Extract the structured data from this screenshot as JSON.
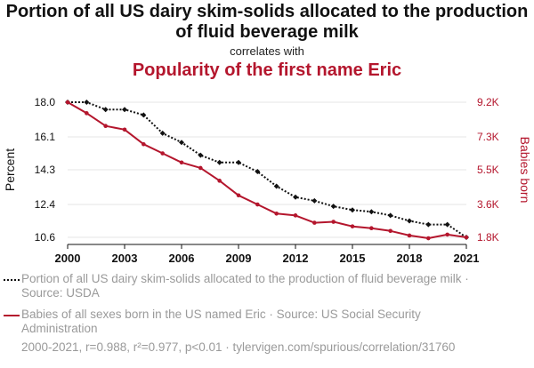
{
  "header": {
    "title": "Portion of all US dairy skim-solids allocated to the production of fluid beverage milk",
    "correlates_with": "correlates with",
    "title2": "Popularity of the first name Eric"
  },
  "chart_data": {
    "type": "line",
    "x": [
      2000,
      2001,
      2002,
      2003,
      2004,
      2005,
      2006,
      2007,
      2008,
      2009,
      2010,
      2011,
      2012,
      2013,
      2014,
      2015,
      2016,
      2017,
      2018,
      2019,
      2020,
      2021
    ],
    "xticks": [
      "2000",
      "2003",
      "2006",
      "2009",
      "2012",
      "2015",
      "2018",
      "2021"
    ],
    "ylabel_left": "Percent",
    "ylabel_right": "Babies born",
    "yticks_left": [
      "18.0",
      "16.1",
      "14.3",
      "12.4",
      "10.6"
    ],
    "yticks_right": [
      "9.2K",
      "7.3K",
      "5.5K",
      "3.6K",
      "1.8K"
    ],
    "ylim_left": [
      10.6,
      18.0
    ],
    "ylim_right": [
      1800,
      9200
    ],
    "grid": true,
    "series": [
      {
        "name": "Portion of all US dairy skim-solids allocated to the production of fluid beverage milk · Source: USDA",
        "axis": "left",
        "color": "#111111",
        "style": "dotted",
        "marker": "diamond",
        "values": [
          18.0,
          18.0,
          17.6,
          17.6,
          17.3,
          16.3,
          15.8,
          15.1,
          14.7,
          14.7,
          14.2,
          13.4,
          12.8,
          12.6,
          12.3,
          12.1,
          12.0,
          11.8,
          11.5,
          11.3,
          11.3,
          10.6
        ]
      },
      {
        "name": "Babies of all sexes born in the US named Eric · Source: US Social Security Administration",
        "axis": "right",
        "color": "#b4162d",
        "style": "solid",
        "marker": "circle",
        "values": [
          9200,
          8600,
          7900,
          7700,
          6900,
          6400,
          5900,
          5600,
          4900,
          4100,
          3600,
          3100,
          3000,
          2600,
          2650,
          2400,
          2300,
          2150,
          1900,
          1750,
          1950,
          1800
        ]
      }
    ]
  },
  "legend": [
    {
      "label": "Portion of all US dairy skim-solids allocated to the production of fluid beverage milk · Source: USDA"
    },
    {
      "label": "Babies of all sexes born in the US named Eric · Source: US Social Security Administration"
    }
  ],
  "footer": "2000-2021, r=0.988, r²=0.977, p<0.01 · tylervigen.com/spurious/correlation/31760"
}
